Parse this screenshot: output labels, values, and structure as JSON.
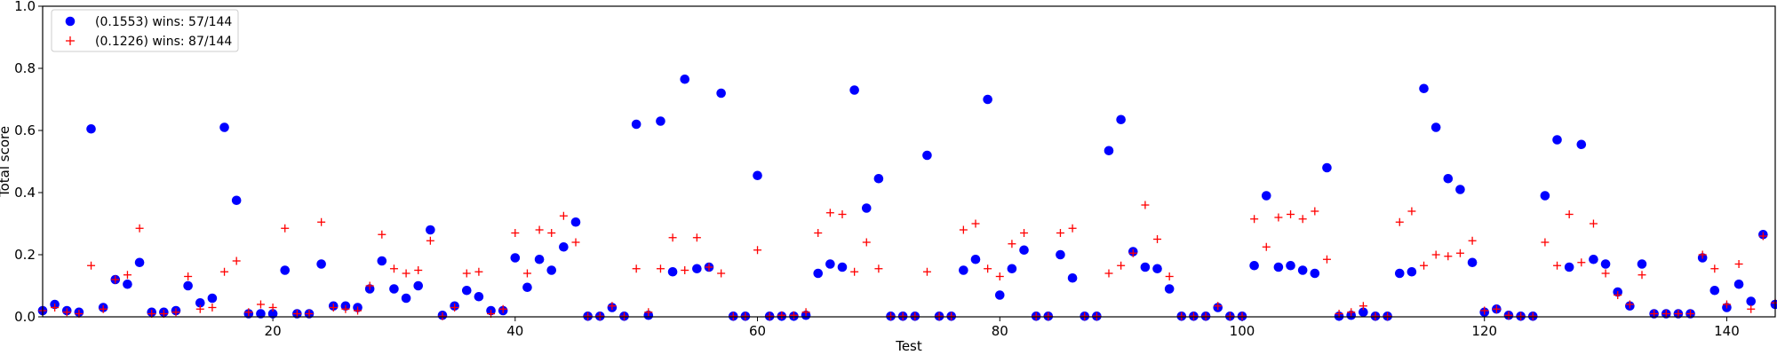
{
  "chart_data": {
    "type": "scatter",
    "title": "",
    "xlabel": "Test",
    "ylabel": "Total score",
    "xlim": [
      1,
      144
    ],
    "ylim": [
      0,
      1.0
    ],
    "xticks": [
      "20",
      "40",
      "60",
      "80",
      "100",
      "120",
      "140"
    ],
    "yticks": [
      "0.0",
      "0.2",
      "0.4",
      "0.6",
      "0.8",
      "1.0"
    ],
    "grid": false,
    "legend_position": "top-left",
    "x": [
      1,
      2,
      3,
      4,
      5,
      6,
      7,
      8,
      9,
      10,
      11,
      12,
      13,
      14,
      15,
      16,
      17,
      18,
      19,
      20,
      21,
      22,
      23,
      24,
      25,
      26,
      27,
      28,
      29,
      30,
      31,
      32,
      33,
      34,
      35,
      36,
      37,
      38,
      39,
      40,
      41,
      42,
      43,
      44,
      45,
      46,
      47,
      48,
      49,
      50,
      51,
      52,
      53,
      54,
      55,
      56,
      57,
      58,
      59,
      60,
      61,
      62,
      63,
      64,
      65,
      66,
      67,
      68,
      69,
      70,
      71,
      72,
      73,
      74,
      75,
      76,
      77,
      78,
      79,
      80,
      81,
      82,
      83,
      84,
      85,
      86,
      87,
      88,
      89,
      90,
      91,
      92,
      93,
      94,
      95,
      96,
      97,
      98,
      99,
      100,
      101,
      102,
      103,
      104,
      105,
      106,
      107,
      108,
      109,
      110,
      111,
      112,
      113,
      114,
      115,
      116,
      117,
      118,
      119,
      120,
      121,
      122,
      123,
      124,
      125,
      126,
      127,
      128,
      129,
      130,
      131,
      132,
      133,
      134,
      135,
      136,
      137,
      138,
      139,
      140,
      141,
      142,
      143,
      144
    ],
    "series": [
      {
        "name": "(0.1553) wins: 57/144",
        "color": "#0000ff",
        "marker": "circle",
        "values": [
          0.02,
          0.04,
          0.02,
          0.015,
          0.605,
          0.03,
          0.12,
          0.105,
          0.175,
          0.015,
          0.015,
          0.02,
          0.1,
          0.045,
          0.06,
          0.61,
          0.375,
          0.01,
          0.01,
          0.01,
          0.15,
          0.01,
          0.01,
          0.17,
          0.035,
          0.035,
          0.03,
          0.09,
          0.18,
          0.09,
          0.06,
          0.1,
          0.28,
          0.005,
          0.035,
          0.085,
          0.065,
          0.02,
          0.02,
          0.19,
          0.095,
          0.185,
          0.15,
          0.225,
          0.305,
          0.002,
          0.002,
          0.03,
          0.002,
          0.62,
          0.005,
          0.63,
          0.145,
          0.765,
          0.155,
          0.16,
          0.72,
          0.002,
          0.002,
          0.455,
          0.002,
          0.002,
          0.002,
          0.005,
          0.14,
          0.17,
          0.16,
          0.73,
          0.35,
          0.445,
          0.002,
          0.002,
          0.002,
          0.52,
          0.002,
          0.002,
          0.15,
          0.185,
          0.7,
          0.07,
          0.155,
          0.215,
          0.002,
          0.002,
          0.2,
          0.125,
          0.002,
          0.002,
          0.535,
          0.635,
          0.21,
          0.16,
          0.155,
          0.09,
          0.002,
          0.002,
          0.002,
          0.03,
          0.002,
          0.002,
          0.165,
          0.39,
          0.16,
          0.165,
          0.15,
          0.14,
          0.48,
          0.002,
          0.005,
          0.015,
          0.002,
          0.002,
          0.14,
          0.145,
          0.735,
          0.61,
          0.445,
          0.41,
          0.175,
          0.015,
          0.025,
          0.005,
          0.002,
          0.002,
          0.39,
          0.57,
          0.16,
          0.555,
          0.185,
          0.17,
          0.08,
          0.035,
          0.17,
          0.01,
          0.01,
          0.01,
          0.01,
          0.19,
          0.085,
          0.03,
          0.105,
          0.05,
          0.265,
          0.04
        ]
      },
      {
        "name": "(0.1226) wins: 87/144",
        "color": "#ff0000",
        "marker": "plus",
        "values": [
          0.02,
          0.03,
          0.015,
          0.01,
          0.165,
          0.025,
          0.12,
          0.135,
          0.285,
          0.01,
          0.01,
          0.015,
          0.13,
          0.025,
          0.03,
          0.145,
          0.18,
          0.015,
          0.04,
          0.03,
          0.285,
          0.01,
          0.01,
          0.305,
          0.03,
          0.025,
          0.02,
          0.1,
          0.265,
          0.155,
          0.14,
          0.15,
          0.245,
          0.002,
          0.03,
          0.14,
          0.145,
          0.01,
          0.025,
          0.27,
          0.14,
          0.28,
          0.27,
          0.325,
          0.24,
          0.002,
          0.002,
          0.035,
          0.002,
          0.155,
          0.015,
          0.155,
          0.255,
          0.15,
          0.255,
          0.16,
          0.14,
          0.002,
          0.002,
          0.215,
          0.002,
          0.005,
          0.005,
          0.015,
          0.27,
          0.335,
          0.33,
          0.145,
          0.24,
          0.155,
          0.002,
          0.002,
          0.002,
          0.145,
          0.002,
          0.002,
          0.28,
          0.3,
          0.155,
          0.13,
          0.235,
          0.27,
          0.002,
          0.002,
          0.27,
          0.285,
          0.002,
          0.002,
          0.14,
          0.165,
          0.205,
          0.36,
          0.25,
          0.13,
          0.002,
          0.002,
          0.002,
          0.035,
          0.002,
          0.002,
          0.315,
          0.225,
          0.32,
          0.33,
          0.315,
          0.34,
          0.185,
          0.01,
          0.015,
          0.035,
          0.002,
          0.002,
          0.305,
          0.34,
          0.165,
          0.2,
          0.195,
          0.205,
          0.245,
          0.02,
          0.025,
          0.005,
          0.002,
          0.002,
          0.24,
          0.165,
          0.33,
          0.175,
          0.3,
          0.14,
          0.07,
          0.04,
          0.135,
          0.01,
          0.01,
          0.01,
          0.01,
          0.2,
          0.155,
          0.04,
          0.17,
          0.025,
          0.26,
          0.045
        ]
      }
    ]
  }
}
